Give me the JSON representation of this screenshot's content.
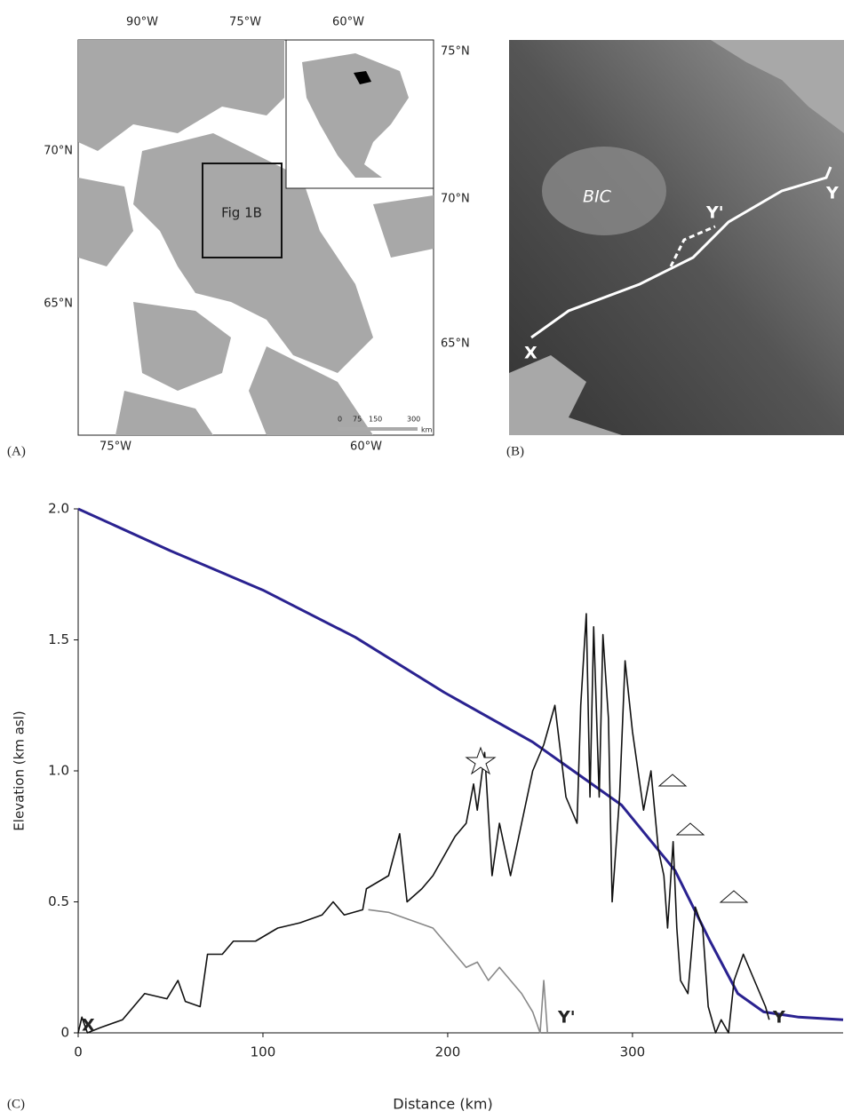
{
  "map_a": {
    "label": "(A)",
    "top_ticks": [
      "90°W",
      "75°W",
      "60°W"
    ],
    "bottom_ticks": [
      "75°W",
      "60°W"
    ],
    "left_ticks": [
      "70°N",
      "65°N"
    ],
    "right_ticks": [
      "75°N",
      "70°N",
      "65°N"
    ],
    "box_label": "Fig 1B",
    "scale_labels": [
      "0",
      "75",
      "150",
      "300",
      "km"
    ]
  },
  "map_b": {
    "label": "(B)",
    "ice_cap": "BIC",
    "points": [
      "X",
      "Y'",
      "Y"
    ]
  },
  "chart_data": {
    "type": "line",
    "panel_label": "(C)",
    "x_label": "Distance (km)",
    "y_label": "Elevation (km asl)",
    "xlim": [
      0,
      414
    ],
    "xticks": [
      0,
      100,
      200,
      300
    ],
    "ylim": [
      0,
      2
    ],
    "yticks": [
      0,
      0.5,
      {
        "value": 1,
        "label": "1.0"
      },
      1.5,
      {
        "value": 2,
        "label": "2.0"
      }
    ],
    "annotations": [
      "X",
      "Y'",
      "Y"
    ],
    "series": [
      {
        "color": "#2a2290",
        "x": [
          0,
          50,
          100,
          150,
          198,
          246,
          294,
          323,
          342,
          357,
          371,
          390,
          414
        ],
        "values": [
          2.0,
          1.84,
          1.69,
          1.51,
          1.3,
          1.11,
          0.87,
          0.62,
          0.35,
          0.15,
          0.08,
          0.06,
          0.05
        ]
      },
      {
        "color": "#111111",
        "x": [
          0,
          2,
          5,
          12,
          24,
          30,
          36,
          48,
          54,
          58,
          66,
          70,
          78,
          84,
          96,
          108,
          120,
          132,
          138,
          144,
          154,
          156,
          168,
          174,
          178,
          186,
          192,
          204,
          210,
          214,
          216,
          220,
          224,
          228,
          234,
          240,
          246,
          252,
          258,
          264,
          270,
          272,
          275,
          277,
          279,
          282,
          284,
          287,
          289,
          293,
          296,
          300,
          306,
          310,
          314,
          317,
          319,
          322,
          324,
          326,
          330,
          334,
          338,
          341,
          345,
          348,
          352,
          355,
          360,
          366,
          372,
          374
        ],
        "values": [
          0,
          0.06,
          0,
          0.02,
          0.05,
          0.1,
          0.15,
          0.13,
          0.2,
          0.12,
          0.1,
          0.3,
          0.3,
          0.35,
          0.35,
          0.4,
          0.42,
          0.45,
          0.5,
          0.45,
          0.47,
          0.55,
          0.6,
          0.76,
          0.5,
          0.55,
          0.6,
          0.75,
          0.8,
          0.95,
          0.85,
          1.07,
          0.6,
          0.8,
          0.6,
          0.8,
          1.0,
          1.1,
          1.25,
          0.9,
          0.8,
          1.25,
          1.6,
          0.9,
          1.55,
          0.9,
          1.52,
          1.2,
          0.5,
          0.9,
          1.42,
          1.15,
          0.85,
          1.0,
          0.7,
          0.6,
          0.4,
          0.73,
          0.4,
          0.2,
          0.15,
          0.48,
          0.4,
          0.1,
          0,
          0.05,
          0,
          0.2,
          0.3,
          0.2,
          0.1,
          0.05
        ]
      },
      {
        "color": "#888888",
        "x": [
          157,
          168,
          180,
          192,
          198,
          204,
          210,
          216,
          222,
          228,
          234,
          240,
          246,
          250,
          252,
          254
        ],
        "values": [
          0.47,
          0.46,
          0.43,
          0.4,
          0.35,
          0.3,
          0.25,
          0.27,
          0.2,
          0.25,
          0.2,
          0.15,
          0.08,
          0,
          0.2,
          0
        ]
      }
    ]
  }
}
